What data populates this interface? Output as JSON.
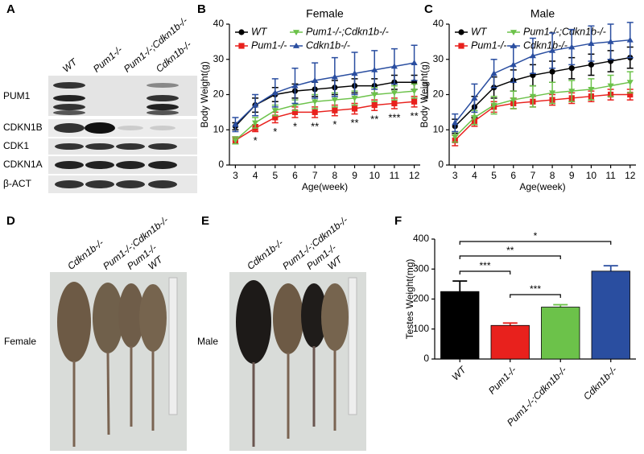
{
  "panel_labels": [
    "A",
    "B",
    "C",
    "D",
    "E",
    "F"
  ],
  "blot": {
    "lanes": [
      "WT",
      "Pum1-/-",
      "Pum1-/-;Cdkn1b-/-",
      "Cdkn1b-/-"
    ],
    "rows": [
      "PUM1",
      "CDKN1B",
      "CDK1",
      "CDKN1A",
      "β-ACT"
    ]
  },
  "photos": [
    {
      "side_label": "Female",
      "lanes": [
        "Cdkn1b-/-",
        "Pum1-/-;Cdkn1b-/-",
        "Pum1-/-",
        "WT"
      ]
    },
    {
      "side_label": "Male",
      "lanes": [
        "Cdkn1b-/-",
        "Pum1-/-;Cdkn1b-/-",
        "Pum1-/-",
        "WT"
      ]
    }
  ],
  "chart_data": [
    {
      "type": "line",
      "title": "Female",
      "xlabel": "Age(week)",
      "ylabel": "Body Weight(g)",
      "x": [
        3,
        4,
        5,
        6,
        7,
        8,
        9,
        10,
        11,
        12
      ],
      "xlim": [
        2.7,
        12.3
      ],
      "xticks": [
        3,
        4,
        5,
        6,
        7,
        8,
        9,
        10,
        11,
        12
      ],
      "ylim": [
        0,
        40
      ],
      "yticks": [
        0,
        10,
        20,
        30,
        40
      ],
      "series": [
        {
          "name": "WT",
          "color": "#000000",
          "marker": "circle",
          "values": [
            11,
            17,
            20,
            21,
            21.5,
            22,
            22.5,
            22.5,
            23.5,
            23.5
          ],
          "errors": [
            1,
            2,
            2,
            2,
            2,
            2,
            2,
            2,
            2,
            2
          ]
        },
        {
          "name": "Pum1-/-",
          "color": "#e8211d",
          "marker": "square",
          "values": [
            7,
            10.5,
            13.5,
            15,
            15,
            15.5,
            16,
            17,
            17.5,
            18
          ],
          "errors": [
            1,
            1,
            1.5,
            1.5,
            1.5,
            1.5,
            1.5,
            1.5,
            1.5,
            1.5
          ]
        },
        {
          "name": "Pum1-/-;Cdkn1b-/-",
          "color": "#6cc24a",
          "marker": "triangle-down",
          "values": [
            7,
            12,
            15.5,
            17,
            18,
            18.5,
            19,
            20,
            20.5,
            21
          ],
          "errors": [
            1,
            1.5,
            1.5,
            1.5,
            2,
            2,
            2,
            2,
            2,
            2
          ]
        },
        {
          "name": "Cdkn1b-/-",
          "color": "#2a4ea0",
          "marker": "triangle",
          "values": [
            11.5,
            17,
            20.5,
            22.5,
            24,
            25,
            26,
            27,
            28,
            29
          ],
          "errors": [
            2,
            3,
            4,
            5,
            5,
            5.5,
            6,
            5.5,
            5,
            5
          ]
        }
      ],
      "annotations": {
        "x": [
          4,
          5,
          6,
          7,
          8,
          9,
          10,
          11,
          12
        ],
        "labels": [
          "*",
          "*",
          "*",
          "**",
          "*",
          "**",
          "**",
          "***",
          "**"
        ]
      }
    },
    {
      "type": "line",
      "title": "Male",
      "xlabel": "Age(week)",
      "ylabel": "Body Weight(g)",
      "x": [
        3,
        4,
        5,
        6,
        7,
        8,
        9,
        10,
        11,
        12
      ],
      "xlim": [
        2.7,
        12.3
      ],
      "xticks": [
        3,
        4,
        5,
        6,
        7,
        8,
        9,
        10,
        11,
        12
      ],
      "ylim": [
        0,
        40
      ],
      "yticks": [
        0,
        10,
        20,
        30,
        40
      ],
      "series": [
        {
          "name": "WT",
          "color": "#000000",
          "marker": "circle",
          "values": [
            11,
            16.5,
            22,
            24,
            25.5,
            26.5,
            27.5,
            28.5,
            29.5,
            30.5
          ],
          "errors": [
            2,
            3,
            3,
            3,
            3,
            3,
            3,
            3,
            3,
            3
          ]
        },
        {
          "name": "Pum1-/-",
          "color": "#e8211d",
          "marker": "square",
          "values": [
            7,
            12.5,
            16.5,
            17.5,
            18,
            18.5,
            19,
            19.5,
            20,
            20
          ],
          "errors": [
            1.5,
            1.5,
            1.5,
            1.5,
            1.5,
            1.5,
            1.5,
            1.5,
            1.5,
            1.5
          ]
        },
        {
          "name": "Pum1-/-;Cdkn1b-/-",
          "color": "#6cc24a",
          "marker": "triangle-down",
          "values": [
            8,
            13.5,
            17,
            18.5,
            19.5,
            20.5,
            21,
            21.5,
            22.5,
            23.5
          ],
          "errors": [
            1.5,
            2,
            2.5,
            2.5,
            3,
            3,
            3,
            3,
            3,
            3
          ]
        },
        {
          "name": "Cdkn1b-/-",
          "color": "#2a4ea0",
          "marker": "triangle",
          "values": [
            12,
            19,
            26,
            28.5,
            31,
            32.5,
            33.5,
            34.5,
            35,
            35.5
          ],
          "errors": [
            2.5,
            4,
            4,
            5,
            5,
            5,
            5,
            5,
            5,
            5
          ]
        }
      ]
    },
    {
      "type": "bar",
      "ylabel": "Testes Weight(mg)",
      "categories": [
        "WT",
        "Pum1-/-",
        "Pum1-/-;Cdkn1b-/-",
        "Cdkn1b-/-"
      ],
      "values": [
        225,
        112,
        173,
        293
      ],
      "errors": [
        35,
        8,
        8,
        18
      ],
      "colors": [
        "#000000",
        "#e8211d",
        "#6cc24a",
        "#2a4ea0"
      ],
      "ylim": [
        0,
        400
      ],
      "yticks": [
        0,
        100,
        200,
        300,
        400
      ],
      "comparisons": [
        {
          "pair": [
            0,
            3
          ],
          "label": "*"
        },
        {
          "pair": [
            0,
            2
          ],
          "label": "**"
        },
        {
          "pair": [
            0,
            1
          ],
          "label": "***"
        },
        {
          "pair": [
            1,
            2
          ],
          "label": "***"
        }
      ]
    }
  ]
}
